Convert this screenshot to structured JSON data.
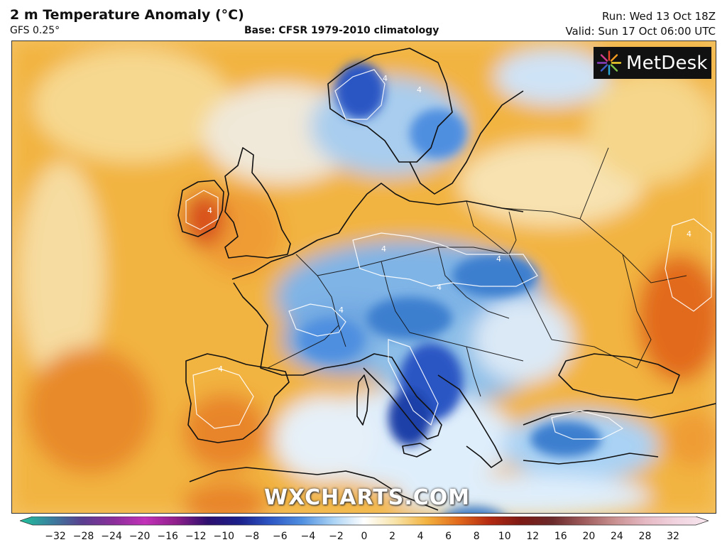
{
  "header": {
    "title": "2 m Temperature Anomaly (°C)",
    "model": "GFS 0.25°",
    "base": "Base: CFSR 1979-2010 climatology",
    "run": "Run: Wed 13 Oct 18Z",
    "valid": "Valid: Sun 17 Oct 06:00 UTC"
  },
  "brand": {
    "name": "MetDesk",
    "icon": "sunburst-logo-icon"
  },
  "watermark": "WXCHARTS.COM",
  "map": {
    "region": "Europe",
    "contour_label": "4",
    "colors": {
      "warm_light": "#f6dca0",
      "warm": "#f2b441",
      "warmer": "#e88a2b",
      "hot": "#d8501f",
      "cool_light": "#dfeefb",
      "cool": "#8ebfe8",
      "cold": "#3c7fcf",
      "colder": "#1a3fa8"
    }
  },
  "colorbar": {
    "ticks": [
      "−32",
      "−28",
      "−24",
      "−20",
      "−16",
      "−12",
      "−10",
      "−8",
      "−6",
      "−4",
      "−2",
      "0",
      "2",
      "4",
      "6",
      "8",
      "10",
      "12",
      "16",
      "20",
      "24",
      "28",
      "32"
    ],
    "stops": [
      "#1fc39c",
      "#3a7f9e",
      "#5a3e8f",
      "#8b2e9a",
      "#c231b8",
      "#8f1f8a",
      "#2d0f6e",
      "#1b1f8a",
      "#2c56c4",
      "#4f8fe0",
      "#a9d2f4",
      "#ffffff",
      "#f8e3a8",
      "#f3b23e",
      "#e26a1c",
      "#b42a12",
      "#7d1a14",
      "#6b2a2a",
      "#9e5a5a",
      "#c99090",
      "#e6b9c4",
      "#f1d4e0",
      "#f7e6ee"
    ]
  }
}
